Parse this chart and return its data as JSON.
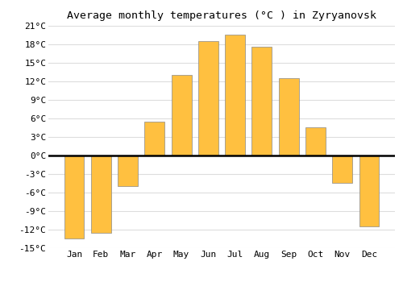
{
  "title": "Average monthly temperatures (°C ) in Zyryanovsk",
  "months": [
    "Jan",
    "Feb",
    "Mar",
    "Apr",
    "May",
    "Jun",
    "Jul",
    "Aug",
    "Sep",
    "Oct",
    "Nov",
    "Dec"
  ],
  "values": [
    -13.5,
    -12.5,
    -5.0,
    5.5,
    13.0,
    18.5,
    19.5,
    17.5,
    12.5,
    4.5,
    -4.5,
    -11.5
  ],
  "bar_color_top": "#FFC040",
  "bar_color_bottom": "#FF9900",
  "bar_edge_color": "#888888",
  "background_color": "#ffffff",
  "plot_bg_color": "#ffffff",
  "grid_color": "#dddddd",
  "zero_line_color": "#000000",
  "ylim": [
    -15,
    21
  ],
  "yticks": [
    -15,
    -12,
    -9,
    -6,
    -3,
    0,
    3,
    6,
    9,
    12,
    15,
    18,
    21
  ],
  "ytick_labels": [
    "-15°C",
    "-12°C",
    "-9°C",
    "-6°C",
    "-3°C",
    "0°C",
    "3°C",
    "6°C",
    "9°C",
    "12°C",
    "15°C",
    "18°C",
    "21°C"
  ],
  "title_fontsize": 9.5,
  "tick_fontsize": 8,
  "font_family": "monospace",
  "bar_width": 0.75
}
